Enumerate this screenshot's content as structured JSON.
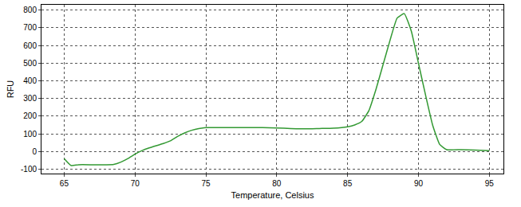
{
  "chart_data": {
    "type": "line",
    "x_label": "Temperature, Celsius",
    "y_label": "RFU",
    "x": [
      65,
      65.5,
      66,
      67,
      68,
      68.5,
      69,
      69.5,
      70,
      70.5,
      71,
      72,
      72.5,
      73,
      73.5,
      74,
      74.5,
      75,
      76,
      77,
      78,
      79,
      80,
      81,
      82,
      83,
      84,
      85,
      85.5,
      86,
      86.5,
      87,
      87.5,
      88,
      88.5,
      89,
      89.5,
      90,
      90.5,
      91,
      91.5,
      92,
      93,
      94,
      95
    ],
    "values": [
      -40,
      -80,
      -75,
      -75,
      -75,
      -73,
      -60,
      -40,
      -15,
      5,
      20,
      45,
      60,
      85,
      105,
      120,
      130,
      135,
      135,
      135,
      135,
      135,
      133,
      130,
      128,
      130,
      132,
      140,
      150,
      170,
      230,
      350,
      490,
      630,
      755,
      780,
      680,
      500,
      320,
      150,
      40,
      10,
      10,
      8,
      5
    ],
    "color": "#339933",
    "xlim": [
      63.4,
      96
    ],
    "ylim": [
      -125,
      830
    ],
    "xticks": [
      65,
      70,
      75,
      80,
      85,
      90,
      95
    ],
    "yticks": [
      -100,
      0,
      100,
      200,
      300,
      400,
      500,
      600,
      700,
      800
    ],
    "grid": true
  }
}
